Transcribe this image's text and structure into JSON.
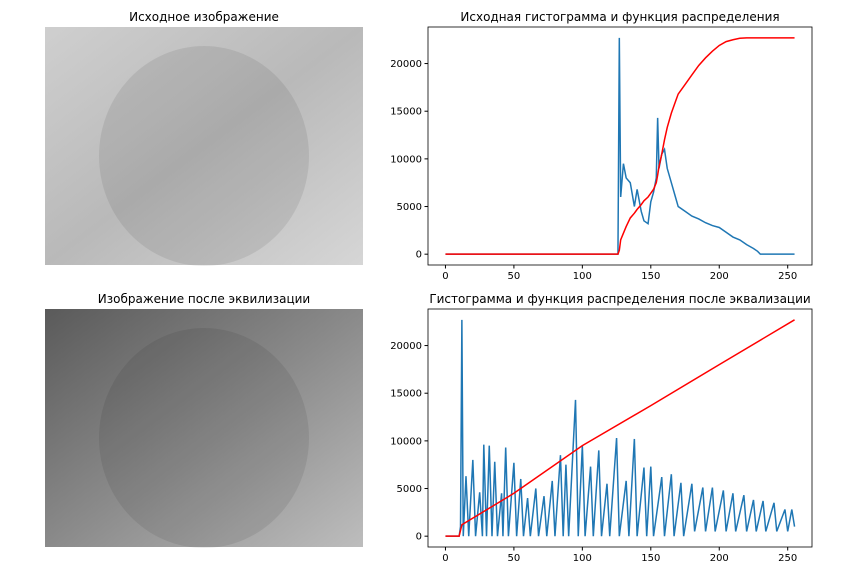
{
  "chart_data": [
    {
      "type": "image",
      "title": "Исходное изображение"
    },
    {
      "type": "line",
      "title": "Исходная гистограмма и функция распределения",
      "x": [
        0,
        126,
        127,
        128,
        130,
        132,
        135,
        138,
        140,
        143,
        145,
        148,
        150,
        152,
        154,
        155,
        156,
        158,
        160,
        162,
        165,
        168,
        170,
        175,
        180,
        185,
        190,
        195,
        200,
        205,
        210,
        215,
        220,
        225,
        228,
        230,
        240,
        255
      ],
      "series": [
        {
          "color": "#1f77b4",
          "values": [
            0,
            0,
            22700,
            6000,
            9500,
            8000,
            7500,
            5000,
            6800,
            4500,
            3500,
            3200,
            5500,
            6500,
            8000,
            14300,
            9000,
            10500,
            11000,
            9000,
            7500,
            6000,
            5000,
            4500,
            4000,
            3700,
            3300,
            3000,
            2800,
            2300,
            1800,
            1500,
            1000,
            600,
            300,
            0,
            0,
            0
          ]
        },
        {
          "color": "#ff0000",
          "values": [
            0,
            0,
            400,
            1500,
            2200,
            2900,
            3800,
            4300,
            4700,
            5200,
            5600,
            6000,
            6400,
            6800,
            7500,
            8300,
            9200,
            10500,
            12000,
            13300,
            14800,
            16000,
            16800,
            17800,
            18800,
            19800,
            20600,
            21300,
            21900,
            22300,
            22500,
            22650,
            22700,
            22700,
            22700,
            22700,
            22700,
            22700
          ]
        }
      ],
      "xlim": [
        -12.75,
        267.75
      ],
      "xticks": [
        0,
        50,
        100,
        150,
        200,
        250
      ],
      "ylim": [
        -1135,
        23835
      ],
      "yticks": [
        0,
        5000,
        10000,
        15000,
        20000
      ]
    },
    {
      "type": "image",
      "title": "Изображение после эквилизации"
    },
    {
      "type": "line",
      "title": "Гистограмма и функция распределения после эквализации",
      "x": [
        0,
        10,
        11,
        12,
        13,
        15,
        17,
        20,
        22,
        25,
        27,
        28,
        30,
        32,
        34,
        36,
        38,
        41,
        42,
        44,
        46,
        50,
        52,
        55,
        57,
        60,
        62,
        66,
        68,
        72,
        74,
        78,
        80,
        84,
        86,
        88,
        90,
        95,
        97,
        100,
        102,
        106,
        108,
        112,
        114,
        118,
        120,
        125,
        127,
        132,
        134,
        138,
        140,
        145,
        147,
        150,
        152,
        158,
        160,
        165,
        167,
        172,
        174,
        180,
        182,
        188,
        190,
        195,
        197,
        203,
        205,
        210,
        212,
        218,
        220,
        225,
        227,
        232,
        234,
        240,
        242,
        248,
        250,
        253,
        255
      ],
      "series": [
        {
          "color": "#1f77b4",
          "values": [
            0,
            0,
            1000,
            22700,
            0,
            6300,
            0,
            8000,
            0,
            4600,
            0,
            9600,
            0,
            9500,
            0,
            7800,
            0,
            4500,
            0,
            9300,
            0,
            7700,
            0,
            6000,
            0,
            4000,
            0,
            5000,
            0,
            4200,
            0,
            5800,
            0,
            8500,
            0,
            7500,
            0,
            14300,
            0,
            9500,
            0,
            7300,
            0,
            9000,
            0,
            5500,
            0,
            10300,
            0,
            5800,
            0,
            10200,
            0,
            7200,
            0,
            7300,
            0,
            6200,
            0,
            6500,
            0,
            5600,
            0,
            5500,
            500,
            5100,
            500,
            5100,
            500,
            4800,
            500,
            4500,
            500,
            4300,
            500,
            3800,
            500,
            3700,
            500,
            3500,
            500,
            2800,
            500,
            2800,
            1000
          ]
        },
        {
          "color": "#ff0000",
          "x": [
            0,
            10,
            12,
            50,
            100,
            150,
            200,
            255
          ],
          "values": [
            0,
            0,
            1200,
            4500,
            9500,
            13700,
            18000,
            22700
          ]
        }
      ],
      "xlim": [
        -12.75,
        267.75
      ],
      "xticks": [
        0,
        50,
        100,
        150,
        200,
        250
      ],
      "ylim": [
        -1135,
        23835
      ],
      "yticks": [
        0,
        5000,
        10000,
        15000,
        20000
      ]
    }
  ]
}
